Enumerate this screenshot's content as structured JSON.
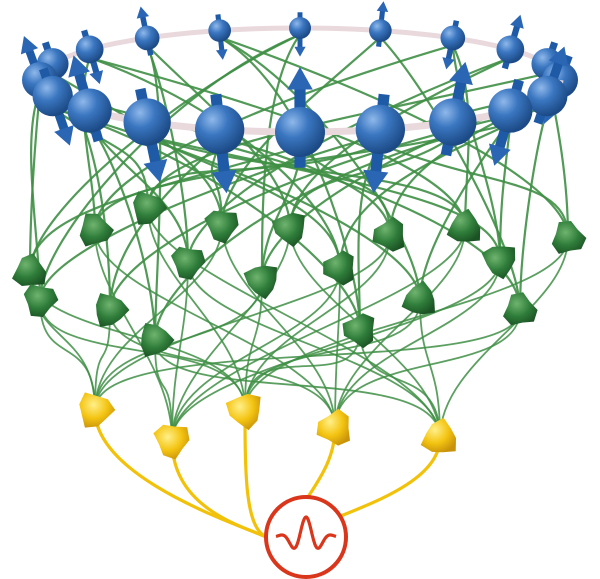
{
  "figure": {
    "caption": "",
    "layers": [
      {
        "name": "spin-layer",
        "count": 20,
        "color": "#2f6db8",
        "shape": "sphere-with-arrow"
      },
      {
        "name": "hidden-neuron-layer",
        "count": 18,
        "color": "#2f7d3a",
        "shape": "neuron-cell"
      },
      {
        "name": "output-neuron-layer",
        "count": 5,
        "color": "#f2c20a",
        "shape": "neuron-cell"
      },
      {
        "name": "wavefunction-output",
        "count": 1,
        "color": "#d9361b",
        "shape": "circle-with-waveform"
      }
    ],
    "ring_color": "#e9d9dd",
    "connection_color_hidden": "#3f8f45",
    "connection_color_output": "#f2c20a"
  }
}
